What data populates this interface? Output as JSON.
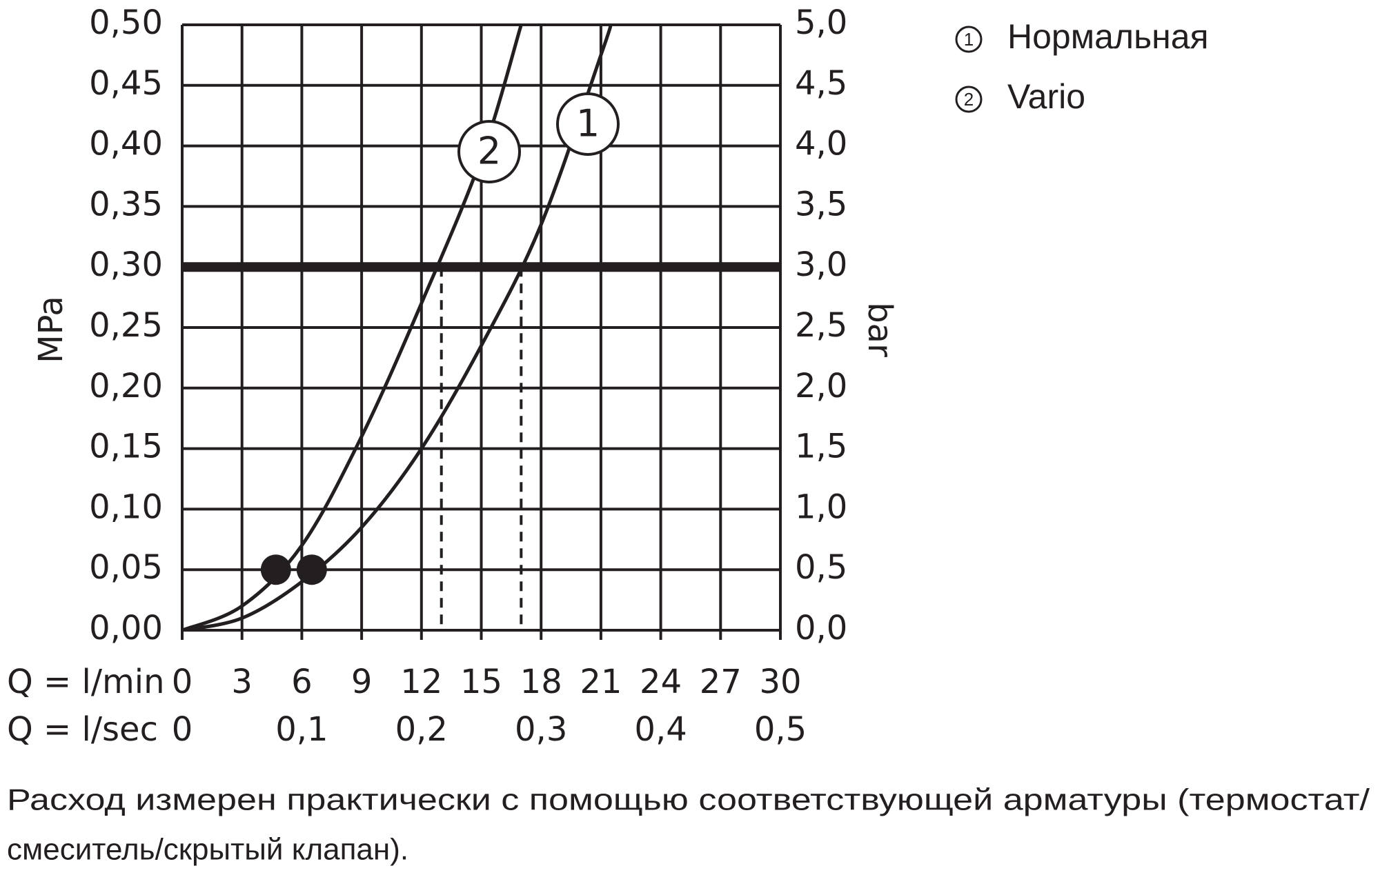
{
  "chart_data": {
    "type": "line",
    "ylabel": "MPa",
    "y2label": "bar",
    "xlabel": "Q = l/min",
    "x2label": "Q = l/sec",
    "xlim": [
      0,
      30
    ],
    "xticks": [
      0,
      3,
      6,
      9,
      12,
      15,
      18,
      21,
      24,
      27,
      30
    ],
    "x2lim": [
      0,
      0.5
    ],
    "x2ticks": [
      0,
      {
        "value": 0.1,
        "label": "0,1"
      },
      {
        "value": 0.2,
        "label": "0,2"
      },
      {
        "value": 0.3,
        "label": "0,3"
      },
      {
        "value": 0.4,
        "label": "0,4"
      },
      {
        "value": 0.5,
        "label": "0,5"
      }
    ],
    "ylim": [
      0,
      0.5
    ],
    "yticks": [
      {
        "value": 0,
        "label": "0,00"
      },
      {
        "value": 0.05,
        "label": "0,05"
      },
      {
        "value": 0.1,
        "label": "0,10"
      },
      {
        "value": 0.15,
        "label": "0,15"
      },
      {
        "value": 0.2,
        "label": "0,20"
      },
      {
        "value": 0.25,
        "label": "0,25"
      },
      {
        "value": 0.3,
        "label": "0,30"
      },
      {
        "value": 0.35,
        "label": "0,35"
      },
      {
        "value": 0.4,
        "label": "0,40"
      },
      {
        "value": 0.45,
        "label": "0,45"
      },
      {
        "value": 0.5,
        "label": "0,50"
      }
    ],
    "y2lim": [
      0,
      5
    ],
    "y2ticks": [
      {
        "value": 0,
        "label": "0,0"
      },
      {
        "value": 0.5,
        "label": "0,5"
      },
      {
        "value": 1,
        "label": "1,0"
      },
      {
        "value": 1.5,
        "label": "1,5"
      },
      {
        "value": 2,
        "label": "2,0"
      },
      {
        "value": 2.5,
        "label": "2,5"
      },
      {
        "value": 3,
        "label": "3,0"
      },
      {
        "value": 3.5,
        "label": "3,5"
      },
      {
        "value": 4,
        "label": "4,0"
      },
      {
        "value": 4.5,
        "label": "4,5"
      },
      {
        "value": 5,
        "label": "5,0"
      }
    ],
    "grid": true,
    "reference_line": 0.3,
    "drop_lines": [
      13,
      17
    ],
    "series": [
      {
        "name": "Нормальная",
        "marker_label": "1",
        "color": "#231f20",
        "x": [
          0,
          3,
          6,
          9,
          12,
          15,
          18,
          21,
          21.5
        ],
        "values": [
          0,
          0.01,
          0.04,
          0.085,
          0.15,
          0.235,
          0.335,
          0.475,
          0.5
        ],
        "point": {
          "x": 6.5,
          "y": 0.05
        }
      },
      {
        "name": "Vario",
        "marker_label": "2",
        "color": "#231f20",
        "x": [
          0,
          3,
          6,
          9,
          12,
          15,
          17
        ],
        "values": [
          0,
          0.02,
          0.07,
          0.16,
          0.27,
          0.39,
          0.5
        ],
        "point": {
          "x": 4.7,
          "y": 0.05
        }
      }
    ],
    "note": [
      "Расход измерен практически с помощью соответствующей арматуры (термостат/",
      "смеситель/скрытый клапан)."
    ]
  }
}
